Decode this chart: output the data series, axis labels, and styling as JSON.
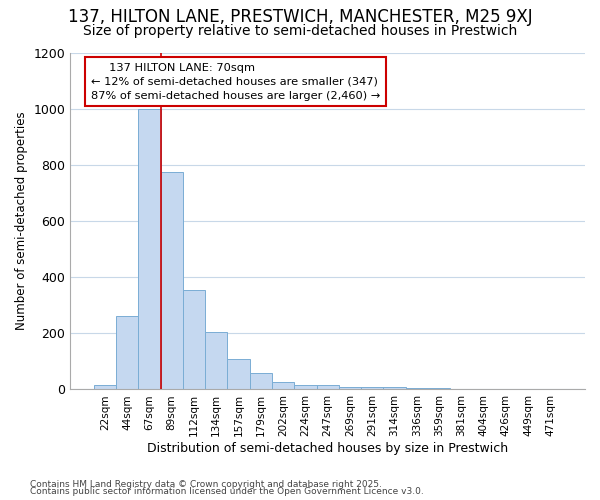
{
  "title1": "137, HILTON LANE, PRESTWICH, MANCHESTER, M25 9XJ",
  "title2": "Size of property relative to semi-detached houses in Prestwich",
  "xlabel": "Distribution of semi-detached houses by size in Prestwich",
  "ylabel": "Number of semi-detached properties",
  "categories": [
    "22sqm",
    "44sqm",
    "67sqm",
    "89sqm",
    "112sqm",
    "134sqm",
    "157sqm",
    "179sqm",
    "202sqm",
    "224sqm",
    "247sqm",
    "269sqm",
    "291sqm",
    "314sqm",
    "336sqm",
    "359sqm",
    "381sqm",
    "404sqm",
    "426sqm",
    "449sqm",
    "471sqm"
  ],
  "values": [
    15,
    260,
    1000,
    775,
    355,
    205,
    110,
    60,
    25,
    15,
    15,
    10,
    10,
    8,
    5,
    4,
    3,
    3,
    3,
    3,
    3
  ],
  "bar_color": "#c5d8f0",
  "bar_edge_color": "#7aadd4",
  "vline_color": "#cc0000",
  "vline_x": 2.5,
  "annotation_title": "137 HILTON LANE: 70sqm",
  "annotation_line2": "← 12% of semi-detached houses are smaller (347)",
  "annotation_line3": "87% of semi-detached houses are larger (2,460) →",
  "annotation_box_facecolor": "#ffffff",
  "annotation_border_color": "#cc0000",
  "ylim": [
    0,
    1200
  ],
  "yticks": [
    0,
    200,
    400,
    600,
    800,
    1000,
    1200
  ],
  "footnote1": "Contains HM Land Registry data © Crown copyright and database right 2025.",
  "footnote2": "Contains public sector information licensed under the Open Government Licence v3.0.",
  "bg_color": "#ffffff",
  "grid_color": "#c8d8e8",
  "title1_fontsize": 12,
  "title2_fontsize": 10
}
